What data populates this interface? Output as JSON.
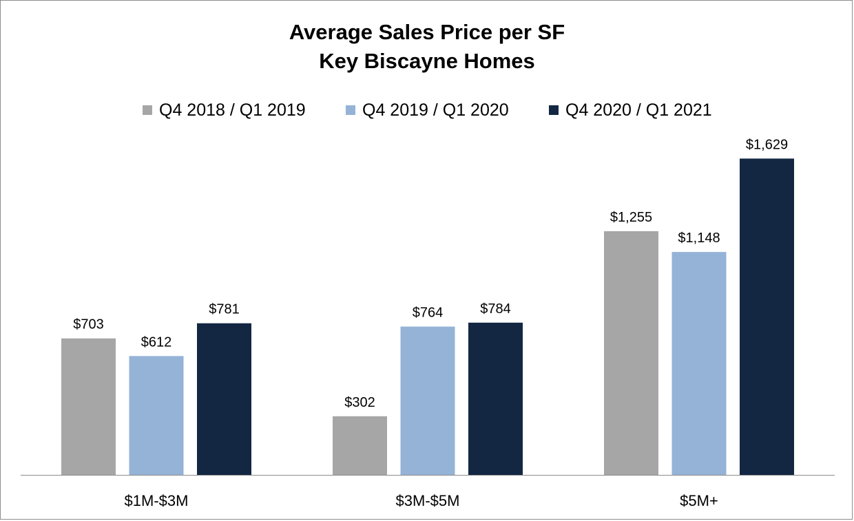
{
  "chart_data": {
    "type": "bar",
    "title": [
      "Average Sales Price per SF",
      "Key Biscayne Homes"
    ],
    "categories": [
      "$1M-$3M",
      "$3M-$5M",
      "$5M+"
    ],
    "series": [
      {
        "name": "Q4 2018 / Q1 2019",
        "color": "#a6a6a6",
        "values": [
          703,
          302,
          1255
        ],
        "labels": [
          "$703",
          "$302",
          "$1,255"
        ]
      },
      {
        "name": "Q4 2019 / Q1 2020",
        "color": "#95b3d7",
        "values": [
          612,
          764,
          1148
        ],
        "labels": [
          "$612",
          "$764",
          "$1,148"
        ]
      },
      {
        "name": "Q4 2020 / Q1 2021",
        "color": "#132743",
        "values": [
          781,
          784,
          1629
        ],
        "labels": [
          "$781",
          "$784",
          "$1,629"
        ]
      }
    ],
    "ylim": [
      0,
      1790
    ],
    "grid": false,
    "legend_position": "top",
    "axis_line_color": "#8c8c8c"
  }
}
